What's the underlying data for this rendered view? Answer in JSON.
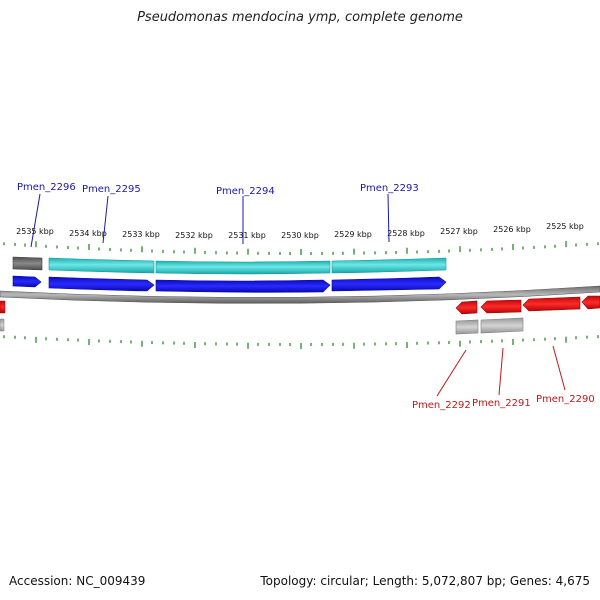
{
  "title": "Pseudomonas mendocina ymp, complete genome",
  "footer": {
    "accession_label": "Accession:",
    "accession": "NC_009439",
    "topology_text": "Topology: circular; Length: 5,072,807 bp; Genes: 4,675"
  },
  "kbp_labels": [
    "2535 kbp",
    "2534 kbp",
    "2533 kbp",
    "2532 kbp",
    "2531 kbp",
    "2530 kbp",
    "2529 kbp",
    "2528 kbp",
    "2527 kbp",
    "2526 kbp",
    "2525 kbp"
  ],
  "genes_top": [
    "Pmen_2296",
    "Pmen_2295",
    "Pmen_2294",
    "Pmen_2293"
  ],
  "genes_bottom": [
    "Pmen_2292",
    "Pmen_2291",
    "Pmen_2290"
  ],
  "colors": {
    "forward_gene": "#1010e0",
    "reverse_gene": "#e01010",
    "forward_label": "#1a1aa8",
    "reverse_label": "#c01818",
    "cds_top": "#2ec8c8",
    "backbone": "#808080",
    "tick": "#2a8a2a"
  }
}
